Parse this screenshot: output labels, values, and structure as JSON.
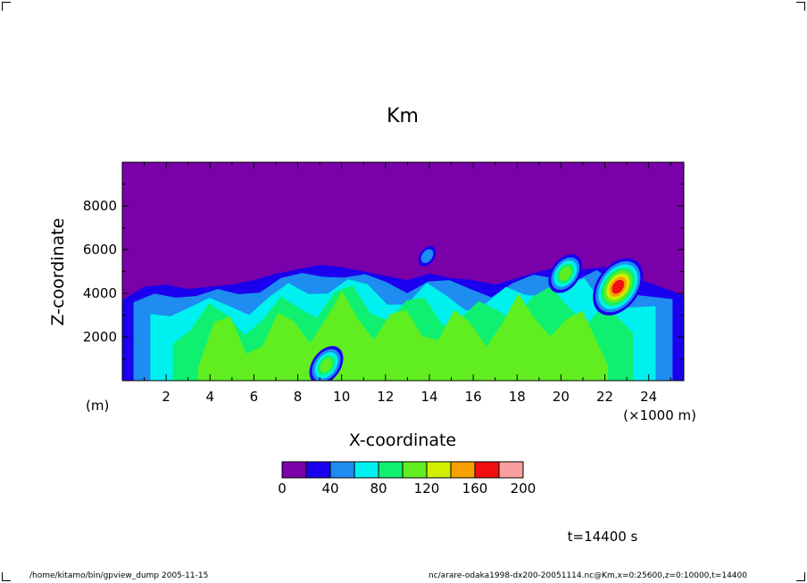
{
  "footer": {
    "left": "/home/kitamo/bin/gpview_dump  2005-11-15",
    "right": "nc/arare-odaka1998-dx200-20051114.nc@Km,x=0:25600,z=0:10000,t=14400"
  },
  "chart_data": {
    "type": "heatmap",
    "title": "Km",
    "xlabel": "X-coordinate",
    "ylabel": "Z-coordinate",
    "x_unit_left": "(m)",
    "x_unit_right": "(×1000 m)",
    "time_label": "t=14400 s",
    "xlim": [
      0,
      25.6
    ],
    "ylim": [
      0,
      10000
    ],
    "x_ticks": [
      2,
      4,
      6,
      8,
      10,
      12,
      14,
      16,
      18,
      20,
      22,
      24
    ],
    "y_ticks": [
      2000,
      4000,
      6000,
      8000
    ],
    "grid": false,
    "legend_placement": "bottom-center",
    "colorbar": {
      "levels": [
        0,
        20,
        40,
        60,
        80,
        100,
        120,
        140,
        160,
        180,
        200
      ],
      "tick_labels": [
        "0",
        "40",
        "80",
        "120",
        "160",
        "200"
      ],
      "colors": [
        "#7a00aa",
        "#1a00ee",
        "#1e8cf0",
        "#00f0f0",
        "#10f070",
        "#60ee20",
        "#d0f000",
        "#f8a000",
        "#f01010",
        "#f8a0a0"
      ]
    },
    "cloud_top_profile": {
      "x": [
        0,
        1,
        2,
        3,
        4,
        5,
        6,
        7,
        8,
        9,
        10,
        11,
        12,
        13,
        14,
        15,
        16,
        17,
        18,
        19,
        20,
        21,
        22,
        23,
        24,
        25.6
      ],
      "z": [
        3700,
        4300,
        4400,
        4200,
        4300,
        4400,
        4600,
        4900,
        5100,
        5300,
        5200,
        5000,
        4800,
        4600,
        4900,
        4700,
        4600,
        4400,
        4700,
        5000,
        5200,
        5100,
        5200,
        4700,
        4500,
        3900
      ]
    },
    "features": [
      {
        "x": 22.6,
        "z": 4300,
        "value": 160
      },
      {
        "x": 20.2,
        "z": 4900,
        "value": 110
      },
      {
        "x": 9.3,
        "z": 700,
        "value": 100
      },
      {
        "x": 13.9,
        "z": 5700,
        "value": 40
      }
    ]
  }
}
